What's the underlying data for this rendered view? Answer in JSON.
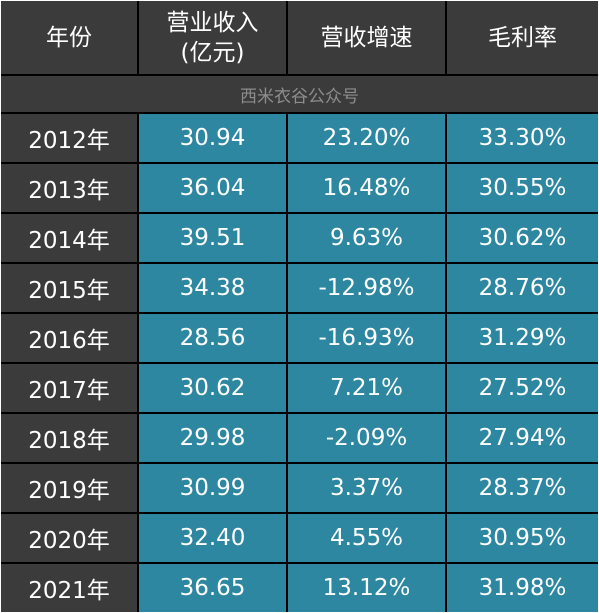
{
  "headers": {
    "year": "年份",
    "revenue_line1": "营业收入",
    "revenue_line2": "(亿元)",
    "growth": "营收增速",
    "margin": "毛利率"
  },
  "watermark": "西米衣谷公众号",
  "rows": [
    {
      "year": "2012年",
      "revenue": "30.94",
      "growth": "23.20%",
      "margin": "33.30%"
    },
    {
      "year": "2013年",
      "revenue": "36.04",
      "growth": "16.48%",
      "margin": "30.55%"
    },
    {
      "year": "2014年",
      "revenue": "39.51",
      "growth": "9.63%",
      "margin": "30.62%"
    },
    {
      "year": "2015年",
      "revenue": "34.38",
      "growth": "-12.98%",
      "margin": "28.76%"
    },
    {
      "year": "2016年",
      "revenue": "28.56",
      "growth": "-16.93%",
      "margin": "31.29%"
    },
    {
      "year": "2017年",
      "revenue": "30.62",
      "growth": "7.21%",
      "margin": "27.52%"
    },
    {
      "year": "2018年",
      "revenue": "29.98",
      "growth": "-2.09%",
      "margin": "27.94%"
    },
    {
      "year": "2019年",
      "revenue": "30.99",
      "growth": "3.37%",
      "margin": "28.37%"
    },
    {
      "year": "2020年",
      "revenue": "32.40",
      "growth": "4.55%",
      "margin": "30.95%"
    },
    {
      "year": "2021年",
      "revenue": "36.65",
      "growth": "13.12%",
      "margin": "31.98%"
    }
  ],
  "colors": {
    "header_bg": "#3b3b3b",
    "value_bg": "#2e87a0",
    "grid_lines": "#000000",
    "text": "#ffffff",
    "watermark_text": "#8d8d8d"
  }
}
